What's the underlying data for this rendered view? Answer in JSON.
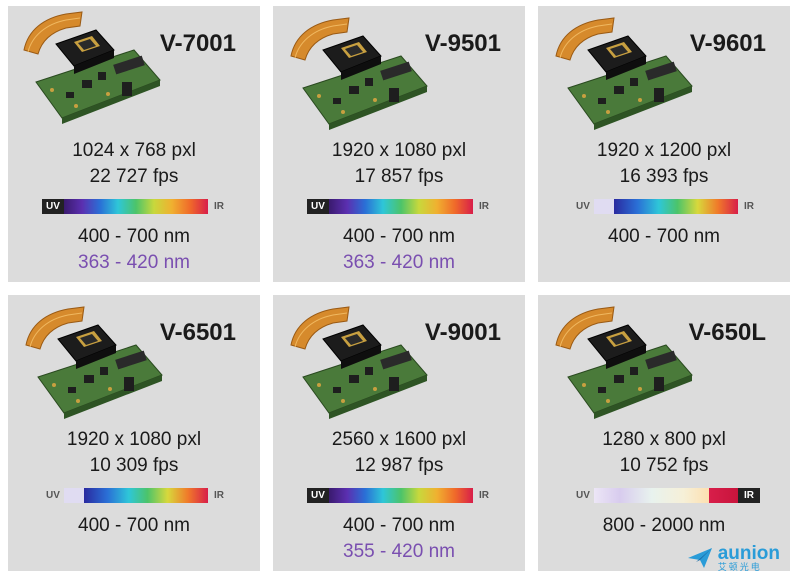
{
  "cards": [
    {
      "model": "V-7001",
      "resolution": "1024 x 768 pxl",
      "fps": "22 727 fps",
      "uv": "UV",
      "ir": "IR",
      "band_visible": "400 - 700 nm",
      "band_uv": "363 - 420 nm"
    },
    {
      "model": "V-9501",
      "resolution": "1920 x 1080 pxl",
      "fps": "17 857 fps",
      "uv": "UV",
      "ir": "IR",
      "band_visible": "400 - 700 nm",
      "band_uv": "363 - 420 nm"
    },
    {
      "model": "V-9601",
      "resolution": "1920 x 1200 pxl",
      "fps": "16 393 fps",
      "uv": "UV",
      "ir": "IR",
      "band_visible": "400 - 700 nm"
    },
    {
      "model": "V-6501",
      "resolution": "1920 x 1080 pxl",
      "fps": "10 309 fps",
      "uv": "UV",
      "ir": "IR",
      "band_visible": "400 - 700 nm"
    },
    {
      "model": "V-9001",
      "resolution": "2560 x 1600 pxl",
      "fps": "12 987 fps",
      "uv": "UV",
      "ir": "IR",
      "band_visible": "400 - 700 nm",
      "band_uv": "355 - 420 nm"
    },
    {
      "model": "V-650L",
      "resolution": "1280 x 800 pxl",
      "fps": "10 752 fps",
      "uv": "UV",
      "ir": "IR",
      "band_nir": "800 - 2000 nm"
    }
  ],
  "logo": {
    "name": "aunion",
    "subtitle": "艾顿光电"
  },
  "colors": {
    "card_bg": "#dcdcdc",
    "uv_band_text": "#7a4fb0",
    "logo": "#2a9cd8",
    "ir_bar": "#d81e4a"
  }
}
